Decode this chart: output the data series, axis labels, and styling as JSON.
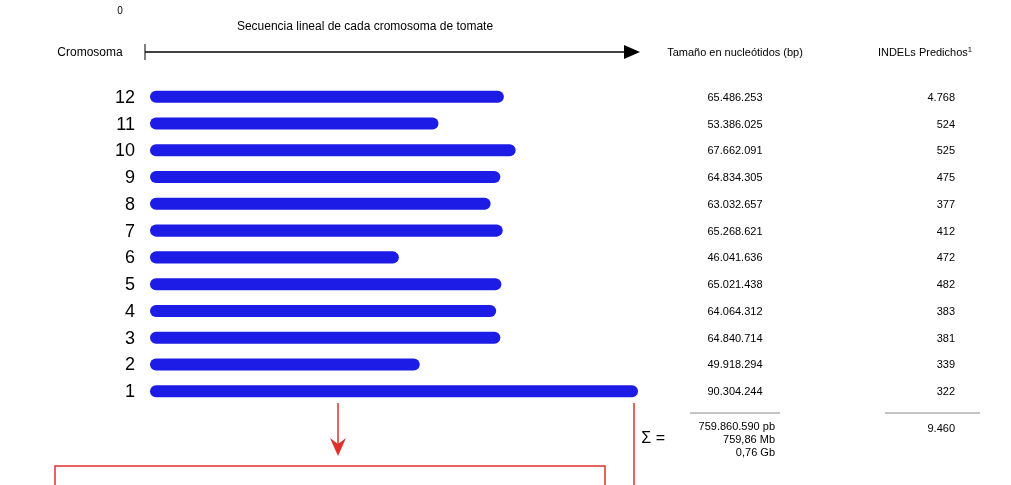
{
  "chart_data": {
    "type": "bar",
    "orientation": "horizontal",
    "title": "Secuencia lineal de cada cromosoma de tomate",
    "ylabel": "Cromosoma",
    "categories": [
      "12",
      "11",
      "10",
      "9",
      "8",
      "7",
      "6",
      "5",
      "4",
      "3",
      "2",
      "1"
    ],
    "series": [
      {
        "color": "#1c1ce6",
        "values": [
          65486253,
          53386025,
          67662091,
          64834305,
          63032657,
          65268621,
          46041636,
          65021438,
          64064312,
          64840714,
          49918294,
          90304244
        ],
        "value_labels": [
          "65.486.253",
          "53.386.025",
          "67.662.091",
          "64.834.305",
          "63.032.657",
          "65.268.621",
          "46.041.636",
          "65.021.438",
          "64.064.312",
          "64.840.714",
          "49.918.294",
          "90.304.244"
        ]
      }
    ],
    "annotations": [
      "Tamaño en nucleótidos (bp)",
      "INDELs Predichos$^{1}$",
      "4.768",
      "524",
      "525",
      "475",
      "377",
      "412",
      "472",
      "482",
      "383",
      "381",
      "339",
      "322",
      "Σ =",
      "759.860.590 pb",
      "759,86 Mb",
      "0,76 Gb",
      "9.460",
      "0"
    ]
  }
}
